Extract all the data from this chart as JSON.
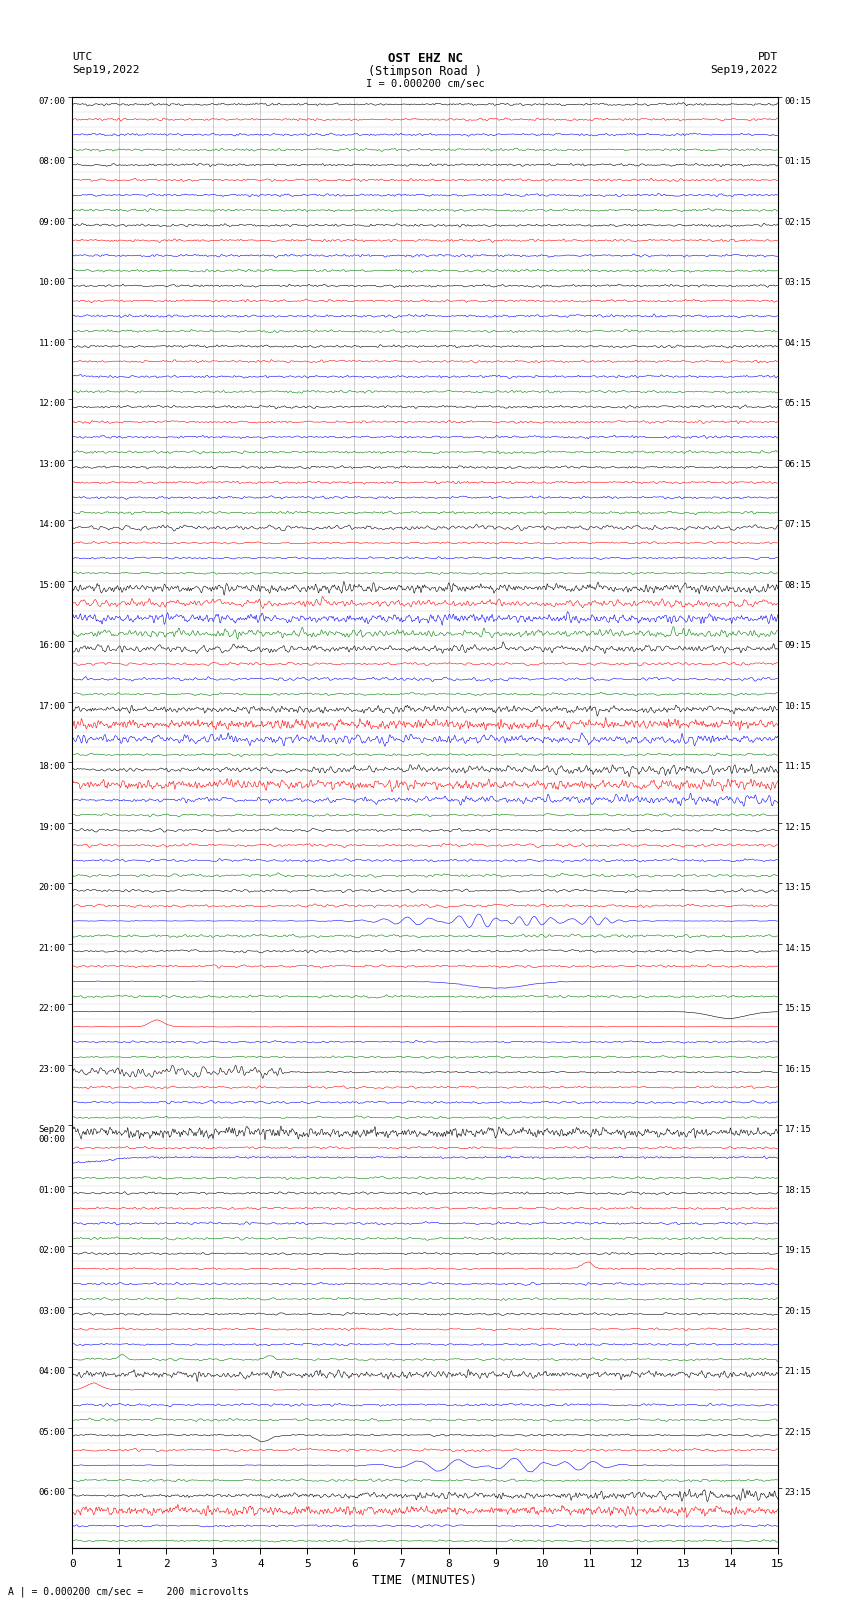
{
  "title_line1": "OST EHZ NC",
  "title_line2": "(Stimpson Road )",
  "title_scale": "I = 0.000200 cm/sec",
  "left_label_top": "UTC",
  "left_label_date": "Sep19,2022",
  "right_label_top": "PDT",
  "right_label_date": "Sep19,2022",
  "bottom_label": "TIME (MINUTES)",
  "bottom_note": "A | = 0.000200 cm/sec =    200 microvolts",
  "xlabel_ticks": [
    0,
    1,
    2,
    3,
    4,
    5,
    6,
    7,
    8,
    9,
    10,
    11,
    12,
    13,
    14,
    15
  ],
  "utc_times_labeled": [
    "07:00",
    "08:00",
    "09:00",
    "10:00",
    "11:00",
    "12:00",
    "13:00",
    "14:00",
    "15:00",
    "16:00",
    "17:00",
    "18:00",
    "19:00",
    "20:00",
    "21:00",
    "22:00",
    "23:00",
    "Sep20\n00:00",
    "01:00",
    "02:00",
    "03:00",
    "04:00",
    "05:00",
    "06:00"
  ],
  "pdt_times_labeled": [
    "00:15",
    "01:15",
    "02:15",
    "03:15",
    "04:15",
    "05:15",
    "06:15",
    "07:15",
    "08:15",
    "09:15",
    "10:15",
    "11:15",
    "12:15",
    "13:15",
    "14:15",
    "15:15",
    "16:15",
    "17:15",
    "18:15",
    "19:15",
    "20:15",
    "21:15",
    "22:15",
    "23:15"
  ],
  "n_hours": 24,
  "rows_per_hour": 4,
  "bg_color": "#ffffff",
  "grid_color": "#888888",
  "row_colors": [
    "black",
    "red",
    "blue",
    "green"
  ]
}
